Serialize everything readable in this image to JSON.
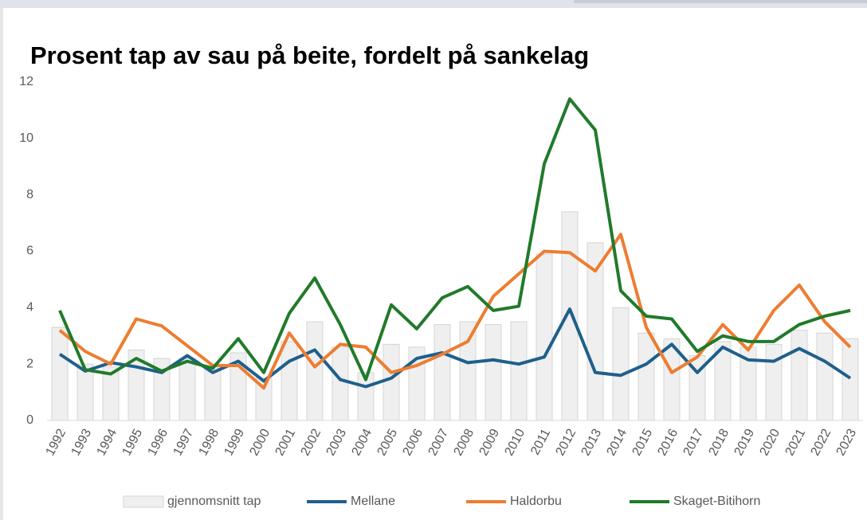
{
  "chart_data": {
    "type": "combo",
    "title": "Prosent tap av sau på beite, fordelt på sankelag",
    "categories": [
      "1992",
      "1993",
      "1994",
      "1995",
      "1996",
      "1997",
      "1998",
      "1999",
      "2000",
      "2001",
      "2002",
      "2003",
      "2004",
      "2005",
      "2006",
      "2007",
      "2008",
      "2009",
      "2010",
      "2011",
      "2012",
      "2013",
      "2014",
      "2015",
      "2016",
      "2017",
      "2018",
      "2019",
      "2020",
      "2021",
      "2022",
      "2023"
    ],
    "series": [
      {
        "name": "gjennomsnitt tap",
        "type": "bar",
        "color": "#efefef",
        "values": [
          3.3,
          2.0,
          1.9,
          2.5,
          2.2,
          2.2,
          1.9,
          2.4,
          1.5,
          2.8,
          3.5,
          2.6,
          1.7,
          2.7,
          2.6,
          3.4,
          3.5,
          3.4,
          3.5,
          5.9,
          7.4,
          6.3,
          4.0,
          3.1,
          2.9,
          2.3,
          2.8,
          2.6,
          2.7,
          3.2,
          3.1,
          2.9
        ]
      },
      {
        "name": "Mellane",
        "type": "line",
        "color": "#1f5f8b",
        "values": [
          2.35,
          1.75,
          2.05,
          1.9,
          1.7,
          2.3,
          1.7,
          2.1,
          1.4,
          2.1,
          2.5,
          1.45,
          1.2,
          1.5,
          2.2,
          2.4,
          2.05,
          2.15,
          2.0,
          2.25,
          3.95,
          1.7,
          1.6,
          2.0,
          2.7,
          1.7,
          2.6,
          2.15,
          2.1,
          2.55,
          2.1,
          1.5
        ]
      },
      {
        "name": "Haldorbu",
        "type": "line",
        "color": "#ed7d31",
        "values": [
          3.2,
          2.45,
          2.0,
          3.6,
          3.35,
          2.65,
          1.95,
          1.95,
          1.15,
          3.1,
          1.9,
          2.7,
          2.6,
          1.7,
          1.95,
          2.35,
          2.8,
          4.4,
          5.2,
          6.0,
          5.95,
          5.3,
          6.6,
          3.3,
          1.7,
          2.25,
          3.4,
          2.5,
          3.9,
          4.8,
          3.5,
          2.6
        ]
      },
      {
        "name": "Skaget-Bitihorn",
        "type": "line",
        "color": "#217a2b",
        "values": [
          3.9,
          1.8,
          1.65,
          2.2,
          1.75,
          2.1,
          1.85,
          2.9,
          1.7,
          3.8,
          5.05,
          3.4,
          1.45,
          4.1,
          3.25,
          4.35,
          4.75,
          3.9,
          4.05,
          9.1,
          11.4,
          10.3,
          4.6,
          3.7,
          3.6,
          2.45,
          3.0,
          2.8,
          2.8,
          3.4,
          3.7,
          3.9
        ]
      }
    ],
    "ylim": [
      0,
      12
    ],
    "yticks": [
      0,
      2,
      4,
      6,
      8,
      10,
      12
    ],
    "grid": false,
    "legend": "bottom"
  }
}
